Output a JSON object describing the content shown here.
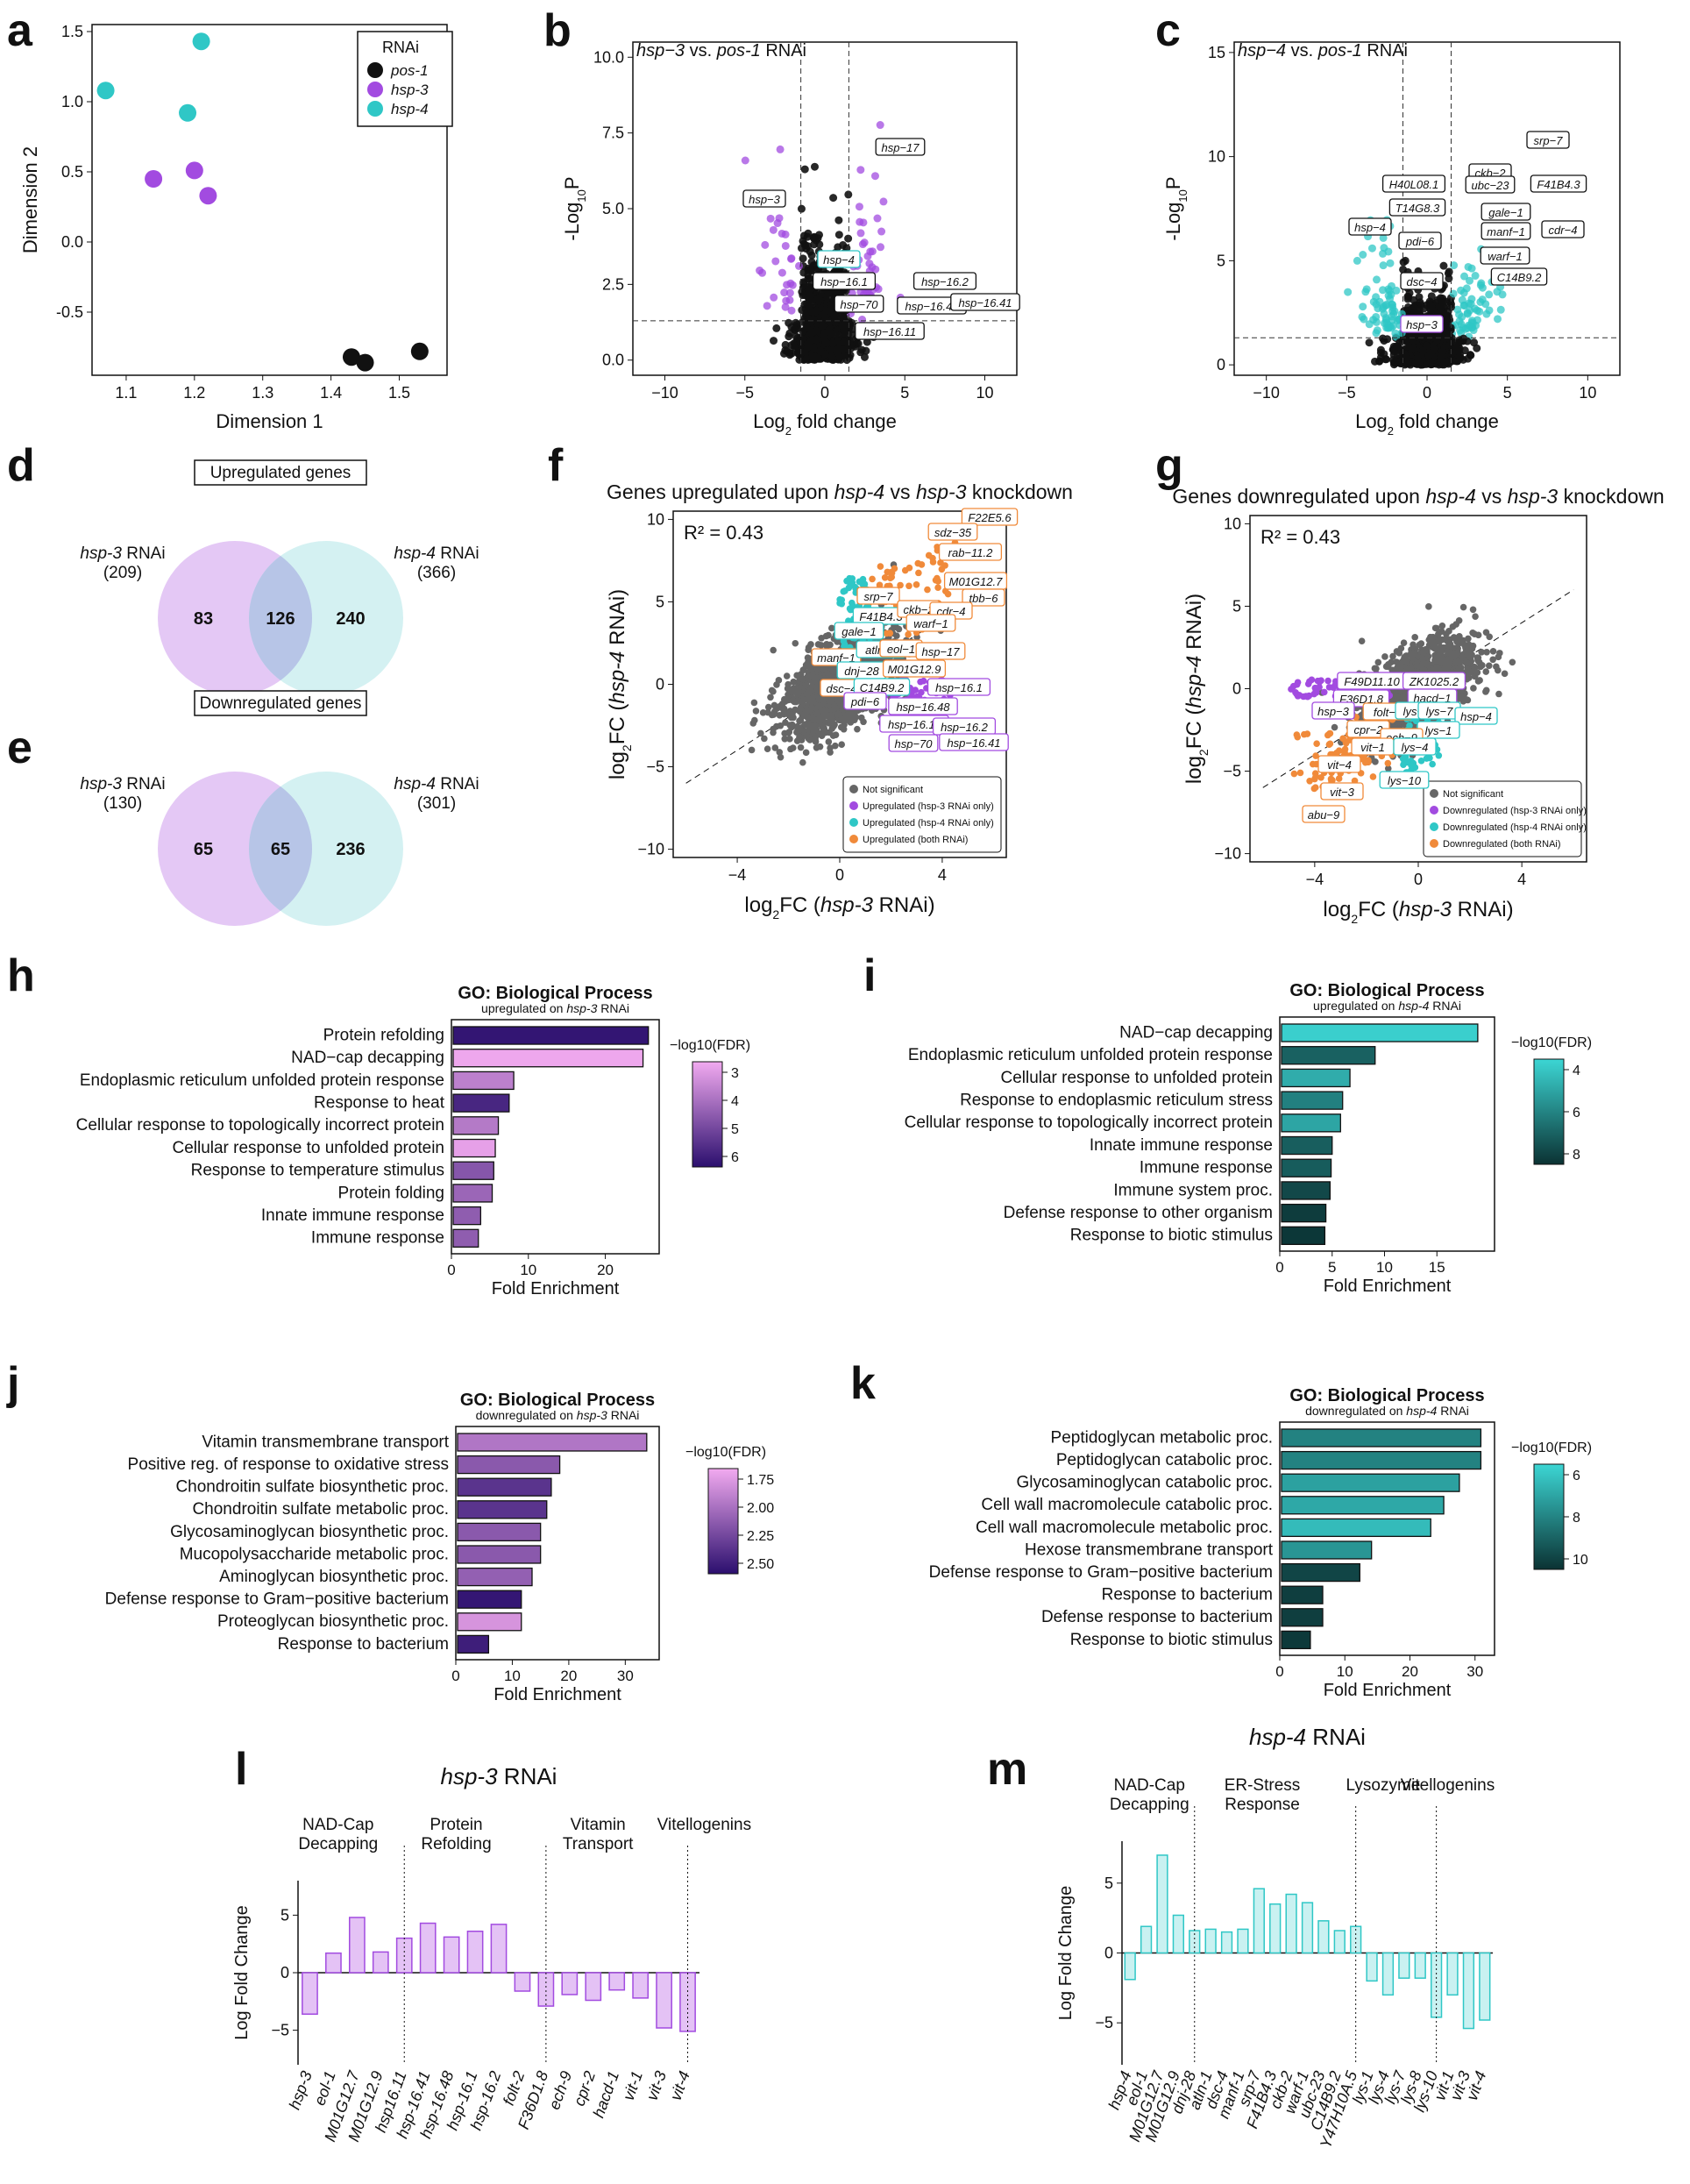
{
  "colors": {
    "black": "#111111",
    "grey": "#555555",
    "purple": "#a24be0",
    "cyan": "#2fc7c6",
    "orange": "#f08a3a",
    "lightPurple": "#e4c8f5",
    "lightCyan": "#cdeef0"
  },
  "panel_letters": [
    "a",
    "b",
    "c",
    "d",
    "e",
    "f",
    "g",
    "h",
    "i",
    "j",
    "k",
    "l",
    "m"
  ],
  "chart_data": [
    {
      "id": "a",
      "type": "scatter",
      "xlabel": "Dimension 1",
      "ylabel": "Dimension  2",
      "xlim": [
        1.05,
        1.57
      ],
      "ylim": [
        -0.95,
        1.55
      ],
      "xticks": [
        "1.1",
        "1.2",
        "1.3",
        "1.4",
        "1.5"
      ],
      "yticks": [
        "-0.5",
        "0.0",
        "0.5",
        "1.0",
        "1.5"
      ],
      "legend": {
        "title": "RNAi",
        "labels": [
          "pos-1",
          "hsp-3",
          "hsp-4"
        ]
      },
      "series": [
        {
          "name": "pos-1",
          "points": [
            [
              1.43,
              -0.82
            ],
            [
              1.45,
              -0.86
            ],
            [
              1.53,
              -0.78
            ]
          ]
        },
        {
          "name": "hsp-3",
          "points": [
            [
              1.14,
              0.45
            ],
            [
              1.2,
              0.51
            ],
            [
              1.22,
              0.33
            ]
          ]
        },
        {
          "name": "hsp-4",
          "points": [
            [
              1.07,
              1.08
            ],
            [
              1.19,
              0.92
            ],
            [
              1.21,
              1.43
            ]
          ]
        }
      ]
    },
    {
      "id": "b",
      "type": "scatter",
      "title_gene": "hsp−3",
      "title_mid": " vs. ",
      "title_ref": "pos-1",
      "title_tail": " RNAi",
      "xlabel": "fold change",
      "ylabel": "-Log",
      "xlim": [
        -12,
        12
      ],
      "ylim": [
        -0.5,
        10.5
      ],
      "xticks": [
        "−10",
        "−5",
        "0",
        "5",
        "10"
      ],
      "yticks": [
        "0.0",
        "2.5",
        "5.0",
        "7.5",
        "10.0"
      ],
      "labels": [
        "hsp−17",
        "hsp−3",
        "hsp−4",
        "hsp−16.1",
        "hsp−16.2",
        "hsp−70",
        "hsp−16.48",
        "hsp−16.41",
        "hsp−16.11"
      ]
    },
    {
      "id": "c",
      "type": "scatter",
      "title_gene": "hsp−4",
      "title_mid": " vs. ",
      "title_ref": "pos-1",
      "title_tail": " RNAi",
      "xlabel": "fold change",
      "ylabel": "-Log",
      "xlim": [
        -12,
        12
      ],
      "ylim": [
        -0.5,
        15.5
      ],
      "xticks": [
        "−10",
        "−5",
        "0",
        "5",
        "10"
      ],
      "yticks": [
        "0",
        "5",
        "10",
        "15"
      ],
      "labels": [
        "srp−7",
        "ckb−2",
        "ubc−23",
        "F41B4.3",
        "H40L08.1",
        "T14G8.3",
        "gale−1",
        "hsp−4",
        "manf−1",
        "cdr−4",
        "pdi−6",
        "warf−1",
        "C14B9.2",
        "dsc−4",
        "hsp−3"
      ]
    },
    {
      "id": "d",
      "type": "venn",
      "title": "Upregulated genes",
      "left": {
        "name": "hsp-3",
        "suffix": " RNAi",
        "n": "(209)",
        "only": "83"
      },
      "overlap": "126",
      "right": {
        "name": "hsp-4",
        "suffix": " RNAi",
        "n": "(366)",
        "only": "240"
      }
    },
    {
      "id": "e",
      "type": "venn",
      "title": "Downregulated genes",
      "left": {
        "name": "hsp-3",
        "suffix": " RNAi",
        "n": "(130)",
        "only": "65"
      },
      "overlap": "65",
      "right": {
        "name": "hsp-4",
        "suffix": " RNAi",
        "n": "(301)",
        "only": "236"
      }
    },
    {
      "id": "f",
      "type": "scatter",
      "title_a": "Genes upregulated upon ",
      "title_b": "hsp-4",
      "title_c": " vs ",
      "title_d": "hsp-3",
      "title_e": " knockdown",
      "r2": "R² = 0.43",
      "xlim": [
        -6.5,
        6.5
      ],
      "ylim": [
        -10.5,
        10.5
      ],
      "xticks": [
        "−4",
        "0",
        "4"
      ],
      "yticks": [
        "−10",
        "−5",
        "0",
        "5",
        "10"
      ],
      "legend": [
        "Not significant",
        "Upregulated (hsp-3 RNAi only)",
        "Upregulated (hsp-4 RNAi only)",
        "Upregulated (both RNAi)"
      ],
      "labels": [
        "F22E5.6",
        "sdz−35",
        "rab−11.2",
        "M01G12.7",
        "tbb−6",
        "srp−7",
        "F41B4.3",
        "ckb−2",
        "cdr−4",
        "gale−1",
        "warf−1",
        "manf−1",
        "atln−1",
        "eol−1",
        "hsp−17",
        "dnj−28",
        "M01G12.9",
        "dsc−4",
        "C14B9.2",
        "hsp−16.1",
        "pdi−6",
        "hsp−16.48",
        "hsp−16.11",
        "hsp−16.2",
        "hsp−70",
        "hsp−16.41"
      ]
    },
    {
      "id": "g",
      "type": "scatter",
      "title_a": "Genes downregulated upon ",
      "title_b": "hsp-4",
      "title_c": " vs ",
      "title_d": "hsp-3",
      "title_e": " knockdown",
      "r2": "R² = 0.43",
      "xlim": [
        -6.5,
        6.5
      ],
      "ylim": [
        -10.5,
        10.5
      ],
      "xticks": [
        "−4",
        "0",
        "4"
      ],
      "yticks": [
        "−10",
        "−5",
        "0",
        "5",
        "10"
      ],
      "legend": [
        "Not significant",
        "Downregulated (hsp-3 RNAi only)",
        "Downregulated (hsp-4 RNAi only)",
        "Downregulated (both RNAi)"
      ],
      "labels": [
        "F49D11.10",
        "ZK1025.2",
        "hacd−1",
        "F36D1.8",
        "hsp−3",
        "folt−2",
        "lys−8",
        "lys−7",
        "hsp−4",
        "lys−1",
        "cpr−2",
        "ech−9",
        "vit−1",
        "lys−4",
        "vit−4",
        "lys−10",
        "vit−3",
        "abu−9"
      ]
    },
    {
      "id": "h",
      "type": "bar",
      "title": "GO: Biological Process",
      "subtitle": "upregulated on hsp-3 RNAi",
      "xlabel": "Fold Enrichment",
      "legend_title": "−log10(FDR)",
      "xlim": [
        0,
        27
      ],
      "xticks": [
        "0",
        "10",
        "20"
      ],
      "cbar": [
        "3",
        "4",
        "5",
        "6"
      ],
      "categories": [
        "Protein refolding",
        "NAD−cap decapping",
        "Endoplasmic reticulum unfolded protein response",
        "Response to heat",
        "Cellular response to topologically incorrect protein",
        "Cellular response to unfolded protein",
        "Response to temperature stimulus",
        "Protein folding",
        "Innate immune response",
        "Immune response"
      ],
      "values": [
        25.6,
        24.9,
        8.1,
        7.5,
        6.1,
        5.7,
        5.5,
        5.3,
        3.8,
        3.5
      ],
      "fdr": [
        6.8,
        2.3,
        3.5,
        6.3,
        3.7,
        2.5,
        4.8,
        4.3,
        4.6,
        4.6
      ],
      "cmin": 2.2,
      "cmax": 7.0
    },
    {
      "id": "i",
      "type": "bar",
      "title": "GO: Biological Process",
      "subtitle": "upregulated on hsp-4 RNAi",
      "xlabel": "Fold Enrichment",
      "legend_title": "−log10(FDR)",
      "xlim": [
        0,
        20.5
      ],
      "xticks": [
        "0",
        "5",
        "10",
        "15"
      ],
      "cbar": [
        "4",
        "6",
        "8"
      ],
      "categories": [
        "NAD−cap decapping",
        "Endoplasmic reticulum unfolded protein response",
        "Cellular response to unfolded protein",
        "Response to endoplasmic reticulum stress",
        "Cellular response to topologically incorrect protein",
        "Innate immune response",
        "Immune response",
        "Immune system proc.",
        "Defense response to other organism",
        "Response to biotic stimulus"
      ],
      "values": [
        18.9,
        9.1,
        6.7,
        6.0,
        5.8,
        5.0,
        4.9,
        4.8,
        4.4,
        4.3
      ],
      "fdr": [
        2.8,
        7.3,
        4.2,
        6.0,
        4.5,
        7.4,
        7.5,
        8.3,
        8.8,
        9.0
      ],
      "cmin": 2.5,
      "cmax": 9.2
    },
    {
      "id": "j",
      "type": "bar",
      "title": "GO: Biological Process",
      "subtitle": "downregulated on hsp-3 RNAi",
      "xlabel": "Fold Enrichment",
      "legend_title": "−log10(FDR)",
      "xlim": [
        0,
        36
      ],
      "xticks": [
        "0",
        "10",
        "20",
        "30"
      ],
      "cbar": [
        "1.75",
        "2.00",
        "2.25",
        "2.50"
      ],
      "categories": [
        "Vitamin transmembrane transport",
        "Positive reg. of response to oxidative stress",
        "Chondroitin sulfate biosynthetic proc.",
        "Chondroitin sulfate metabolic proc.",
        "Glycosaminoglycan biosynthetic proc.",
        "Mucopolysaccharide metabolic proc.",
        "Aminoglycan biosynthetic proc.",
        "Defense response to Gram−positive bacterium",
        "Proteoglycan biosynthetic proc.",
        "Response to bacterium"
      ],
      "values": [
        33.8,
        18.4,
        16.9,
        16.1,
        15.0,
        15.0,
        13.5,
        11.6,
        11.6,
        5.8
      ],
      "fdr": [
        1.9,
        2.1,
        2.35,
        2.35,
        2.1,
        2.1,
        2.05,
        2.55,
        1.7,
        2.5
      ],
      "cmin": 1.55,
      "cmax": 2.6
    },
    {
      "id": "k",
      "type": "bar",
      "title": "GO: Biological Process",
      "subtitle": "downregulated on hsp-4 RNAi",
      "xlabel": "Fold Enrichment",
      "legend_title": "−log10(FDR)",
      "xlim": [
        0,
        33
      ],
      "xticks": [
        "0",
        "10",
        "20",
        "30"
      ],
      "cbar": [
        "6",
        "8",
        "10"
      ],
      "categories": [
        "Peptidoglycan metabolic proc.",
        "Peptidoglycan catabolic proc.",
        "Glycosaminoglycan catabolic proc.",
        "Cell wall macromolecule catabolic proc.",
        "Cell wall macromolecule metabolic proc.",
        "Hexose transmembrane transport",
        "Defense response to Gram−positive bacterium",
        "Response to bacterium",
        "Defense response to bacterium",
        "Response to biotic stimulus"
      ],
      "values": [
        30.9,
        30.9,
        27.6,
        25.2,
        23.2,
        14.1,
        12.3,
        6.6,
        6.6,
        4.7
      ],
      "fdr": [
        8.0,
        8.0,
        6.7,
        6.4,
        5.6,
        7.2,
        10.5,
        10.8,
        10.8,
        11.0
      ],
      "cmin": 4.5,
      "cmax": 11.3
    },
    {
      "id": "l",
      "type": "bar",
      "title_gene": "hsp-3",
      "title_tail": " RNAi",
      "ylabel": "Log Fold Change",
      "ylim": [
        -8,
        8
      ],
      "yticks": [
        "−5",
        "0",
        "5"
      ],
      "groups": [
        {
          "lines": [
            "NAD-Cap",
            "Decapping"
          ],
          "start": 1,
          "end": 4
        },
        {
          "lines": [
            "Protein",
            "Refolding"
          ],
          "start": 5,
          "end": 10
        },
        {
          "lines": [
            "Vitamin",
            "Transport"
          ],
          "start": 11,
          "end": 16
        },
        {
          "lines": [
            "Vitellogenins"
          ],
          "start": 17,
          "end": 19
        }
      ],
      "categories": [
        "hsp-3",
        "eol-1",
        "M01G12.7",
        "M01G12.9",
        "hsp16.11",
        "hsp-16.41",
        "hsp-16.48",
        "hsp-16.1",
        "hsp-16.2",
        "folt-2",
        "F36D1.8",
        "ech-9",
        "cpr-2",
        "hacd-1",
        "vit-1",
        "vit-3",
        "vit-4"
      ],
      "values": [
        -3.6,
        1.7,
        4.8,
        1.8,
        3.0,
        4.3,
        3.1,
        3.6,
        4.2,
        -1.6,
        -2.9,
        -1.9,
        -2.4,
        -1.5,
        -2.2,
        -4.8,
        -5.1
      ]
    },
    {
      "id": "m",
      "type": "bar",
      "title_gene": "hsp-4",
      "title_tail": " RNAi",
      "ylabel": "Log Fold Change",
      "ylim": [
        -8,
        8
      ],
      "yticks": [
        "−5",
        "0",
        "5"
      ],
      "groups": [
        {
          "lines": [
            "NAD-Cap",
            "Decapping"
          ],
          "start": 1,
          "end": 4
        },
        {
          "lines": [
            "ER-Stress",
            "Response"
          ],
          "start": 5,
          "end": 14
        },
        {
          "lines": [
            "Lysozyme"
          ],
          "start": 15,
          "end": 19
        },
        {
          "lines": [
            "Vitellogenins"
          ],
          "start": 20,
          "end": 22
        }
      ],
      "categories": [
        "hsp-4",
        "eol-1",
        "M01G12.7",
        "M01G12.9",
        "dnj-28",
        "atln-1",
        "dsc-4",
        "manf-1",
        "srp-7",
        "F41B4.3",
        "ckb-2",
        "warf-1",
        "ubc-23",
        "C14B9.2",
        "Y47H10A.5",
        "lys-1",
        "lys-4",
        "lys-7",
        "lys-8",
        "lys-10",
        "vit-1",
        "vit-3",
        "vit-4"
      ],
      "values": [
        -1.9,
        1.9,
        7.0,
        2.7,
        1.6,
        1.7,
        1.5,
        1.7,
        4.6,
        3.5,
        4.2,
        3.6,
        2.3,
        1.6,
        1.9,
        -2.0,
        -3.0,
        -1.8,
        -1.8,
        -4.6,
        -3.0,
        -5.4,
        -4.8
      ]
    }
  ]
}
